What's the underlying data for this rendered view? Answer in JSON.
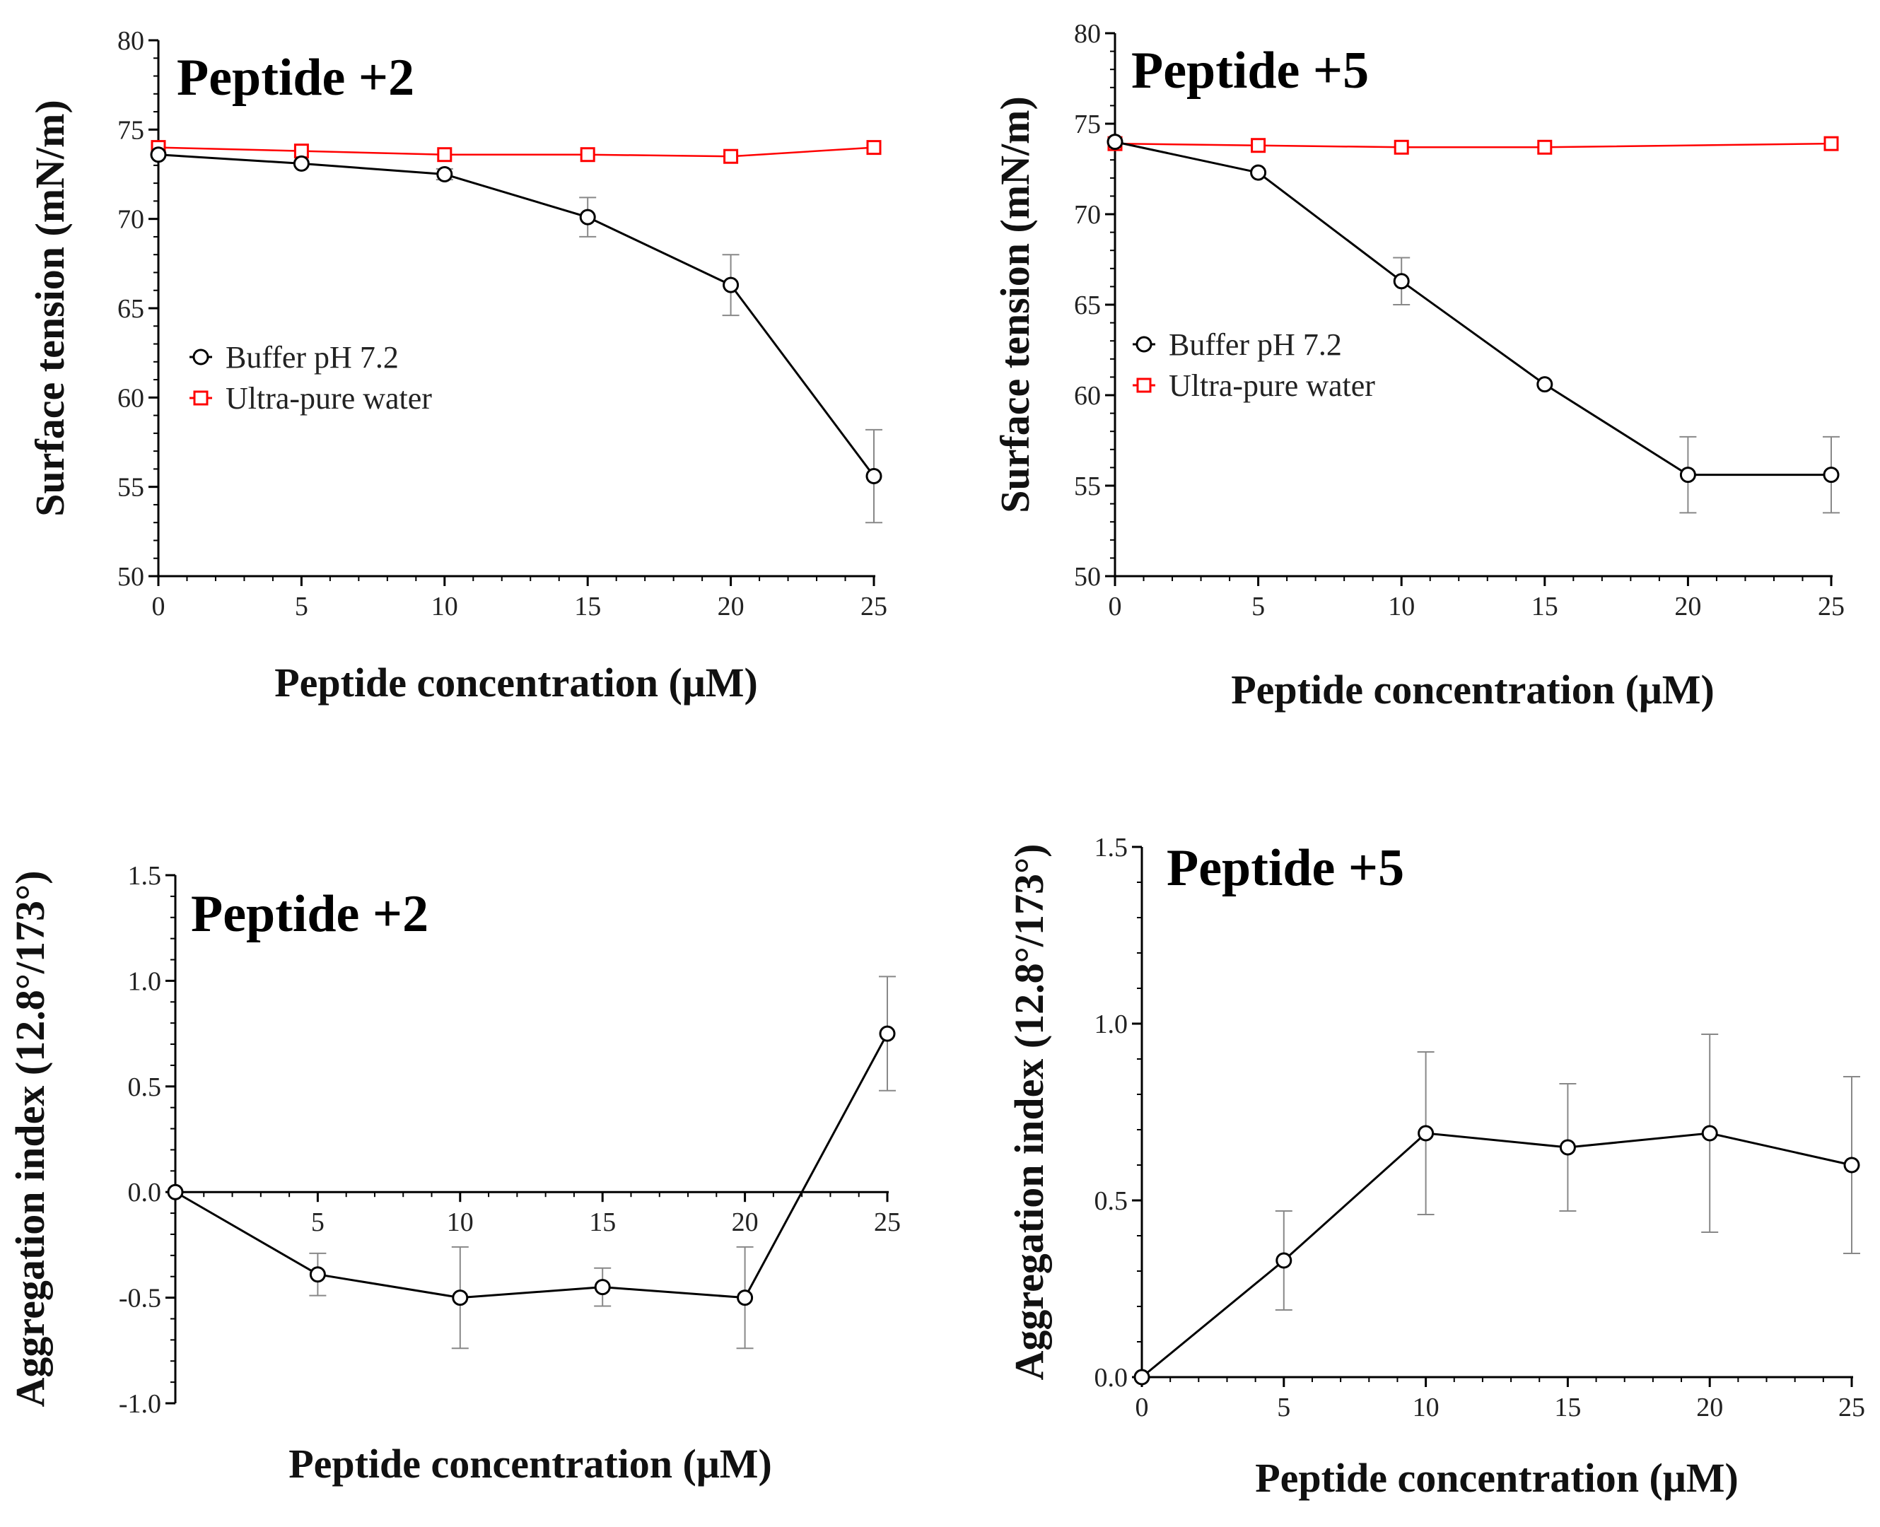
{
  "figure": {
    "background": "#ffffff"
  },
  "chart_data": [
    {
      "type": "line",
      "title": "Peptide +2",
      "xlabel": "Peptide concentration (μM)",
      "ylabel": "Surface tension (mN/m)",
      "xlim": [
        0,
        25
      ],
      "ylim": [
        50,
        80
      ],
      "x_ticks": [
        0,
        5,
        10,
        15,
        20,
        25
      ],
      "x_tick_labels": [
        "0",
        "5",
        "10",
        "15",
        "20",
        "25"
      ],
      "y_ticks": [
        50,
        55,
        60,
        65,
        70,
        75,
        80
      ],
      "y_tick_labels": [
        "50",
        "55",
        "60",
        "65",
        "70",
        "75",
        "80"
      ],
      "legend_position": "middle-left",
      "series": [
        {
          "name": "Buffer pH 7.2",
          "marker": "circle",
          "color": "#000000",
          "x": [
            0,
            5,
            10,
            15,
            20,
            25
          ],
          "values": [
            73.6,
            73.1,
            72.5,
            70.1,
            66.3,
            55.6
          ],
          "errors": [
            0.2,
            0.2,
            0.3,
            1.1,
            1.7,
            2.6
          ]
        },
        {
          "name": "Ultra-pure water",
          "marker": "square",
          "color": "#ff0000",
          "x": [
            0,
            5,
            10,
            15,
            20,
            25
          ],
          "values": [
            74.0,
            73.8,
            73.6,
            73.6,
            73.5,
            74.0
          ],
          "errors": [
            0,
            0,
            0,
            0,
            0,
            0
          ]
        }
      ]
    },
    {
      "type": "line",
      "title": "Peptide +5",
      "xlabel": "Peptide concentration (μM)",
      "ylabel": "Surface tension (mN/m)",
      "xlim": [
        0,
        25
      ],
      "ylim": [
        50,
        80
      ],
      "x_ticks": [
        0,
        5,
        10,
        15,
        20,
        25
      ],
      "x_tick_labels": [
        "0",
        "5",
        "10",
        "15",
        "20",
        "25"
      ],
      "y_ticks": [
        50,
        55,
        60,
        65,
        70,
        75,
        80
      ],
      "y_tick_labels": [
        "50",
        "55",
        "60",
        "65",
        "70",
        "75",
        "80"
      ],
      "legend_position": "middle-left",
      "series": [
        {
          "name": "Buffer pH 7.2",
          "marker": "circle",
          "color": "#000000",
          "x": [
            0,
            5,
            10,
            15,
            20,
            25
          ],
          "values": [
            74.0,
            72.3,
            66.3,
            60.6,
            55.6,
            55.6
          ],
          "errors": [
            0.1,
            0.2,
            1.3,
            0.2,
            2.1,
            2.1
          ]
        },
        {
          "name": "Ultra-pure water",
          "marker": "square",
          "color": "#ff0000",
          "x": [
            0,
            5,
            10,
            15,
            25
          ],
          "values": [
            73.9,
            73.8,
            73.7,
            73.7,
            73.9
          ],
          "errors": [
            0,
            0,
            0,
            0,
            0
          ]
        }
      ]
    },
    {
      "type": "line",
      "title": "Peptide +2",
      "xlabel": "Peptide concentration (μM)",
      "ylabel": "Aggregation index (12.8°/173°)",
      "xlim": [
        0,
        25
      ],
      "ylim": [
        -1.0,
        1.5
      ],
      "x_ticks": [
        5,
        10,
        15,
        20,
        25
      ],
      "x_tick_labels": [
        "5",
        "10",
        "15",
        "20",
        "25"
      ],
      "x_axis_at": 0,
      "y_ticks": [
        -1.0,
        -0.5,
        0.0,
        0.5,
        1.0,
        1.5
      ],
      "y_tick_labels": [
        "-1.0",
        "-0.5",
        "0.0",
        "0.5",
        "1.0",
        "1.5"
      ],
      "series": [
        {
          "name": "Aggregation index",
          "marker": "circle",
          "color": "#000000",
          "x": [
            0,
            5,
            10,
            15,
            20,
            25
          ],
          "values": [
            0.0,
            -0.39,
            -0.5,
            -0.45,
            -0.5,
            0.75
          ],
          "errors": [
            0.0,
            0.1,
            0.24,
            0.09,
            0.24,
            0.27
          ]
        }
      ]
    },
    {
      "type": "line",
      "title": "Peptide +5",
      "xlabel": "Peptide concentration (μM)",
      "ylabel": "Aggregation index (12.8°/173°)",
      "xlim": [
        0,
        25
      ],
      "ylim": [
        0.0,
        1.5
      ],
      "x_ticks": [
        0,
        5,
        10,
        15,
        20,
        25
      ],
      "x_tick_labels": [
        "0",
        "5",
        "10",
        "15",
        "20",
        "25"
      ],
      "y_ticks": [
        0.0,
        0.5,
        1.0,
        1.5
      ],
      "y_tick_labels": [
        "0.0",
        "0.5",
        "1.0",
        "1.5"
      ],
      "series": [
        {
          "name": "Aggregation index",
          "marker": "circle",
          "color": "#000000",
          "x": [
            0,
            5,
            10,
            15,
            20,
            25
          ],
          "values": [
            0.0,
            0.33,
            0.69,
            0.65,
            0.69,
            0.6
          ],
          "errors": [
            0.0,
            0.14,
            0.23,
            0.18,
            0.28,
            0.25
          ]
        }
      ]
    }
  ]
}
